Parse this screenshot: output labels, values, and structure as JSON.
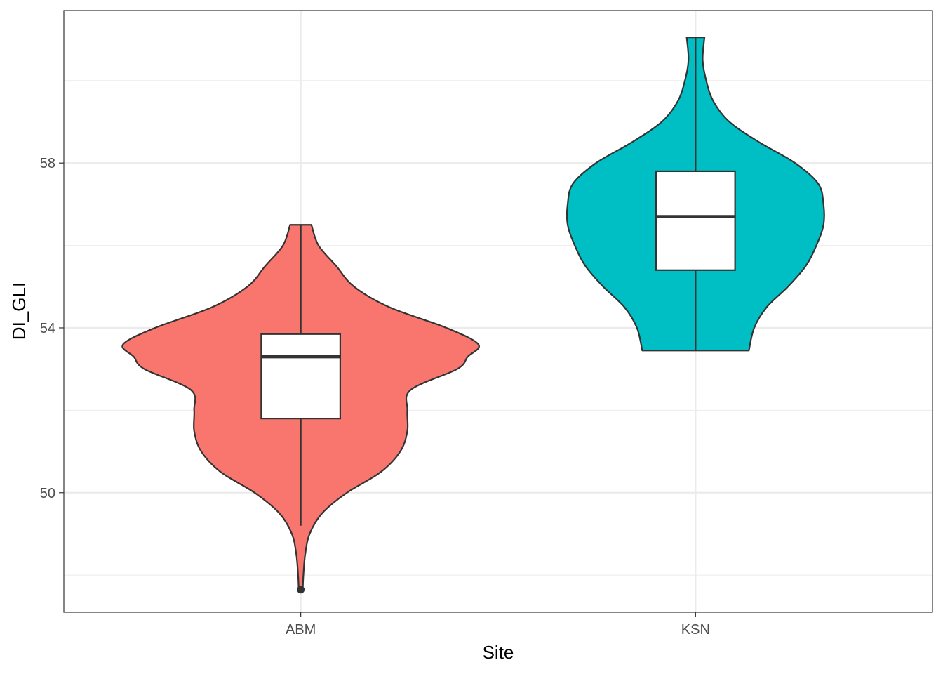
{
  "chart_data": {
    "type": "violin",
    "xlabel": "Site",
    "ylabel": "DI_GLI",
    "categories": [
      "ABM",
      "KSN"
    ],
    "ylim": [
      47.1,
      61.7
    ],
    "yticks": [
      50,
      54,
      58
    ],
    "ytick_labels": [
      "50",
      "54",
      "58"
    ],
    "grid": true,
    "legend": "none",
    "series": [
      {
        "category": "ABM",
        "color": "#F8766D",
        "box": {
          "q1": 51.8,
          "median": 53.3,
          "q3": 53.85,
          "whisker_low": 49.2,
          "whisker_high": 56.5
        },
        "outliers": [
          47.65
        ],
        "violin": {
          "y": [
            47.72,
            48.0,
            48.5,
            49.0,
            49.5,
            50.0,
            50.5,
            51.0,
            51.5,
            52.0,
            52.5,
            53.0,
            53.3,
            53.6,
            54.0,
            54.5,
            55.0,
            55.5,
            56.0,
            56.5
          ],
          "half_width": [
            0.012,
            0.015,
            0.025,
            0.05,
            0.12,
            0.26,
            0.45,
            0.56,
            0.6,
            0.6,
            0.62,
            0.88,
            0.94,
            1.0,
            0.82,
            0.5,
            0.3,
            0.2,
            0.1,
            0.06
          ]
        }
      },
      {
        "category": "KSN",
        "color": "#00BFC4",
        "box": {
          "q1": 55.4,
          "median": 56.7,
          "q3": 57.8,
          "whisker_low": 53.45,
          "whisker_high": 61.05
        },
        "outliers": [],
        "violin": {
          "y": [
            53.45,
            54.0,
            54.5,
            55.0,
            55.5,
            56.0,
            56.5,
            57.0,
            57.5,
            58.0,
            58.5,
            59.0,
            59.5,
            60.0,
            60.5,
            61.05
          ],
          "half_width": [
            0.3,
            0.33,
            0.4,
            0.52,
            0.62,
            0.68,
            0.72,
            0.72,
            0.69,
            0.56,
            0.36,
            0.19,
            0.1,
            0.06,
            0.04,
            0.05
          ]
        }
      }
    ]
  }
}
